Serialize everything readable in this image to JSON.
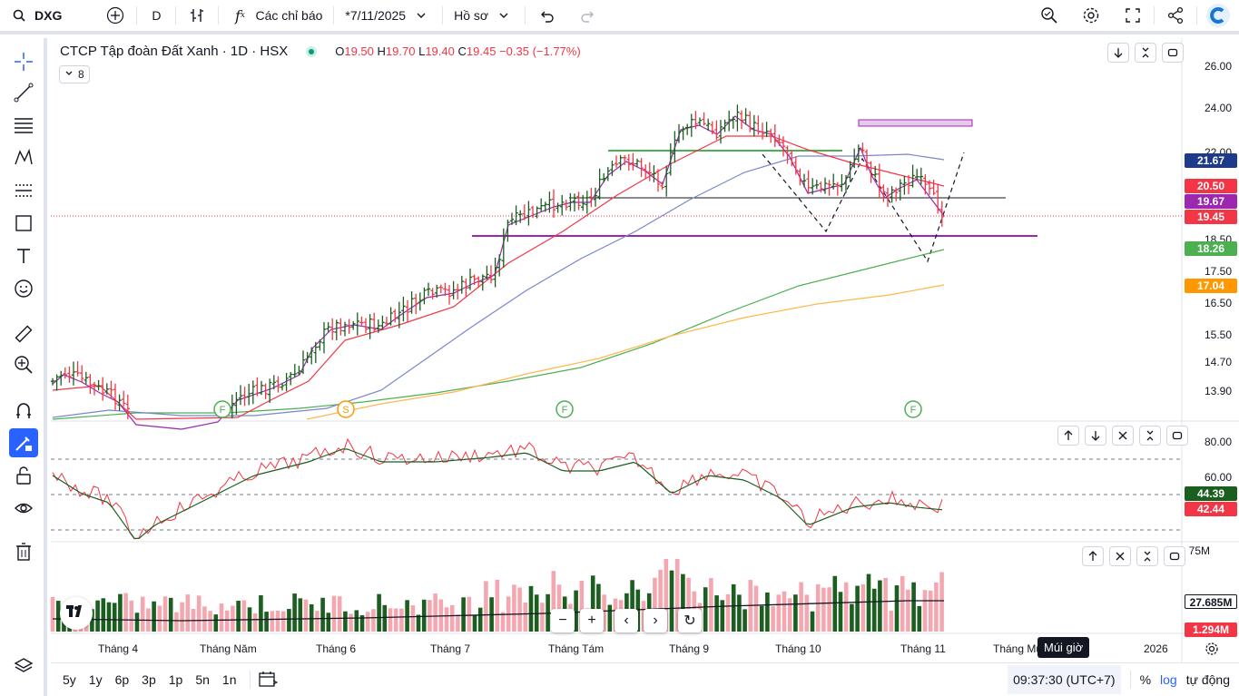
{
  "topbar": {
    "symbol": "DXG",
    "interval": "D",
    "indicators_label": "Các chỉ báo",
    "layout_name": "*7/11/2025",
    "profile_label": "Hồ sơ"
  },
  "legend": {
    "title": "CTCP Tập đoàn Đất Xanh · 1D · HSX",
    "open_label": "O",
    "open": "19.50",
    "high_label": "H",
    "high": "19.70",
    "low_label": "L",
    "low": "19.40",
    "close_label": "C",
    "close": "19.45",
    "change": "−0.35 (−1.77%)",
    "collapsed_count": "8"
  },
  "price_axis": {
    "ticks": [
      "26.00",
      "24.00",
      "22.00",
      "18.50",
      "17.50",
      "16.50",
      "15.50",
      "14.70",
      "13.90"
    ],
    "labels": [
      {
        "text": "21.67",
        "color": "#1e3a8a"
      },
      {
        "text": "20.50",
        "color": "#f23645"
      },
      {
        "text": "19.67",
        "color": "#9c27b0"
      },
      {
        "text": "19.45",
        "color": "#f23645"
      },
      {
        "text": "18.26",
        "color": "#4caf50"
      },
      {
        "text": "17.04",
        "color": "#ff9800"
      }
    ]
  },
  "rsi_axis": {
    "ticks": [
      "80.00",
      "60.00"
    ],
    "labels": [
      {
        "text": "44.39",
        "color": "#1b5e20"
      },
      {
        "text": "42.44",
        "color": "#f23645"
      }
    ]
  },
  "volume_axis": {
    "tick": "75M",
    "labels": [
      {
        "text": "27.685M",
        "color": "#131722"
      },
      {
        "text": "1.294M",
        "color": "#f23645"
      }
    ]
  },
  "time_axis": {
    "ticks": [
      "Tháng 4",
      "Tháng Năm",
      "Tháng 6",
      "Tháng 7",
      "Tháng Tám",
      "Tháng 9",
      "Tháng 10",
      "Tháng 11",
      "Tháng Mư",
      "2026"
    ]
  },
  "markers": [
    "F",
    "S",
    "F",
    "F"
  ],
  "bottombar": {
    "ranges": [
      "5y",
      "1y",
      "6p",
      "3p",
      "1p",
      "5n",
      "1n"
    ],
    "clock": "09:37:30 (UTC+7)",
    "percent": "%",
    "log": "log",
    "auto": "tự động"
  },
  "tooltip": "Múi giờ",
  "colors": {
    "up": "#1b5e20",
    "down": "#f23645",
    "accent": "#2962ff"
  }
}
